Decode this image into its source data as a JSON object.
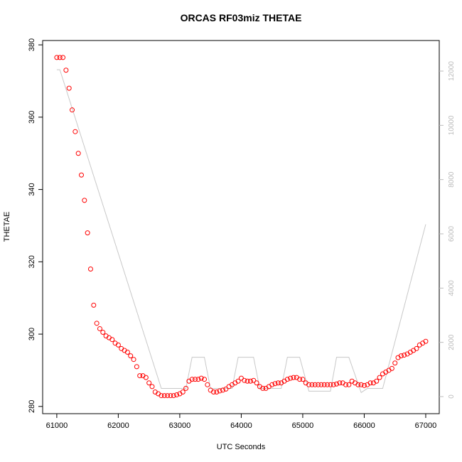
{
  "chart_data": {
    "type": "scatter",
    "title": "ORCAS RF03miz THETAE",
    "xlabel": "UTC Seconds",
    "ylabel": "THETAE",
    "xlim": [
      60770,
      67220
    ],
    "ylim": [
      278.0,
      381.2
    ],
    "y2lim": [
      -629,
      13127
    ],
    "xticks": [
      61000,
      62000,
      63000,
      64000,
      65000,
      66000,
      67000
    ],
    "yticks": [
      280,
      300,
      320,
      340,
      360,
      380
    ],
    "y2ticks": [
      0,
      2000,
      4000,
      6000,
      8000,
      10000,
      12000
    ],
    "series": [
      {
        "color": "#ff0000",
        "x": [
          61000,
          61050,
          61100,
          61150,
          61200,
          61250,
          61300,
          61350,
          61400,
          61450,
          61500,
          61550,
          61600,
          61650,
          61700,
          61750,
          61800,
          61850,
          61900,
          61950,
          62000,
          62050,
          62100,
          62150,
          62200,
          62250,
          62300,
          62350,
          62400,
          62450,
          62500,
          62550,
          62600,
          62650,
          62700,
          62750,
          62800,
          62850,
          62900,
          62950,
          63000,
          63050,
          63100,
          63150,
          63200,
          63250,
          63300,
          63350,
          63400,
          63450,
          63500,
          63550,
          63600,
          63650,
          63700,
          63750,
          63800,
          63850,
          63900,
          63950,
          64000,
          64050,
          64100,
          64150,
          64200,
          64250,
          64300,
          64350,
          64400,
          64450,
          64500,
          64550,
          64600,
          64650,
          64700,
          64750,
          64800,
          64850,
          64900,
          64950,
          65000,
          65050,
          65100,
          65150,
          65200,
          65250,
          65300,
          65350,
          65400,
          65450,
          65500,
          65550,
          65600,
          65650,
          65700,
          65750,
          65800,
          65850,
          65900,
          65950,
          66000,
          66050,
          66100,
          66150,
          66200,
          66250,
          66300,
          66350,
          66400,
          66450,
          66500,
          66550,
          66600,
          66650,
          66700,
          66750,
          66800,
          66850,
          66900,
          66950,
          67000
        ],
        "values": [
          376.5,
          376.5,
          376.5,
          373,
          368,
          362,
          356,
          350,
          344,
          337,
          328,
          318,
          308,
          303,
          301.5,
          300.5,
          299.5,
          299,
          298.5,
          297.5,
          297,
          296,
          295.5,
          295,
          294,
          293,
          291,
          288.5,
          288.5,
          288,
          286.5,
          285.5,
          284,
          283.5,
          283,
          283,
          283,
          283,
          283,
          283.2,
          283.5,
          284,
          285,
          287,
          287.5,
          287.5,
          287.5,
          287.8,
          287.5,
          286,
          284.5,
          284,
          284,
          284.3,
          284.5,
          284.8,
          285.5,
          286,
          286.5,
          287,
          287.8,
          287.2,
          287,
          287,
          287.2,
          286.5,
          285.5,
          285,
          285,
          285.5,
          286,
          286.3,
          286.5,
          286.5,
          287,
          287.5,
          287.8,
          288,
          288,
          287.5,
          287.5,
          286.5,
          286,
          286,
          286,
          286,
          286,
          286,
          286,
          286,
          286,
          286.2,
          286.5,
          286.5,
          286,
          286,
          287,
          286.5,
          286,
          286,
          285.8,
          286,
          286.5,
          286.5,
          287,
          288,
          289,
          289.5,
          290,
          290.5,
          292,
          293.5,
          294,
          294.2,
          294.5,
          295,
          295.5,
          296,
          297,
          297.5,
          298
        ]
      },
      {
        "type": "line",
        "color": "#c8c8c8",
        "axis": "y2",
        "x": [
          61000,
          61050,
          62700,
          63100,
          63200,
          63400,
          63500,
          63850,
          63950,
          64200,
          64300,
          64650,
          64750,
          64950,
          65100,
          65450,
          65550,
          65750,
          65950,
          66050,
          66300,
          67000
        ],
        "values": [
          12050,
          12050,
          300,
          300,
          1450,
          1450,
          300,
          300,
          1450,
          1450,
          300,
          300,
          1450,
          1450,
          200,
          200,
          1450,
          1450,
          150,
          300,
          300,
          6350
        ]
      }
    ]
  }
}
